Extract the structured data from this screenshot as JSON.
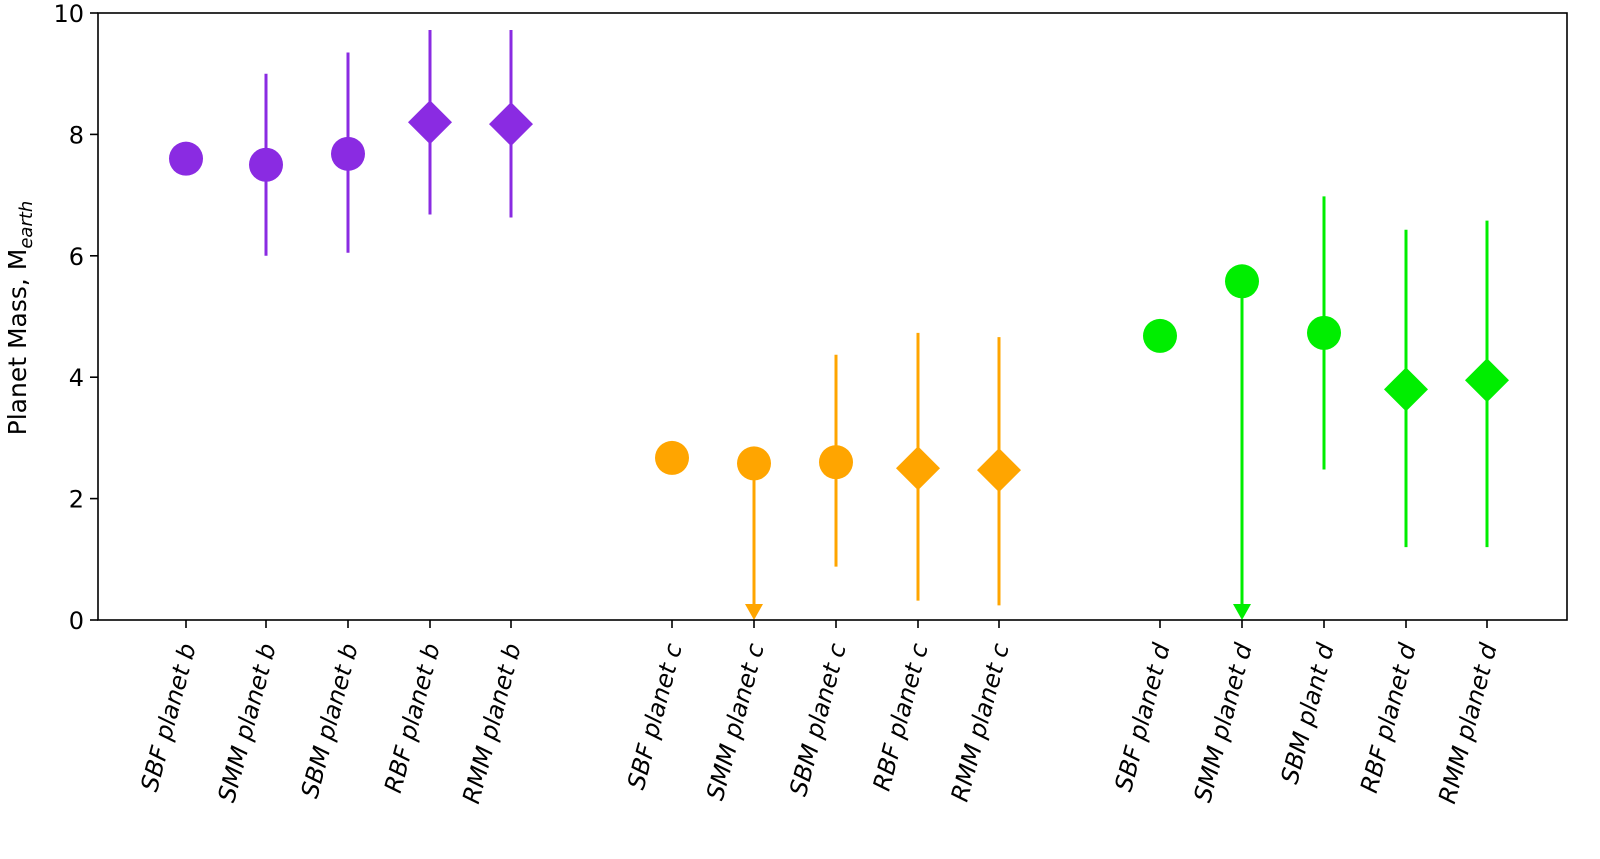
{
  "chart_data": {
    "type": "scatter",
    "ylabel": "Planet Mass, M",
    "ylabel_subscript": "earth",
    "ylim": [
      0,
      10
    ],
    "yticks": [
      "0",
      "2",
      "4",
      "6",
      "8",
      "10"
    ],
    "grid": false,
    "colors": {
      "planet_b": "#8a2be2",
      "planet_c": "#ffa500",
      "planet_d": "#00ee00"
    },
    "points": [
      {
        "label": "SBF planet b",
        "group": "planet_b",
        "marker": "circle",
        "y": 7.6,
        "err_low": null,
        "err_high": null,
        "upper_limit": false
      },
      {
        "label": "SMM planet b",
        "group": "planet_b",
        "marker": "circle",
        "y": 7.5,
        "err_low": 6.0,
        "err_high": 9.0,
        "upper_limit": false
      },
      {
        "label": "SBM planet b",
        "group": "planet_b",
        "marker": "circle",
        "y": 7.68,
        "err_low": 6.05,
        "err_high": 9.35,
        "upper_limit": false
      },
      {
        "label": "RBF planet b",
        "group": "planet_b",
        "marker": "diamond",
        "y": 8.2,
        "err_low": 6.68,
        "err_high": 9.72,
        "upper_limit": false
      },
      {
        "label": "RMM planet b",
        "group": "planet_b",
        "marker": "diamond",
        "y": 8.17,
        "err_low": 6.63,
        "err_high": 9.72,
        "upper_limit": false
      },
      {
        "label": "SBF planet c",
        "group": "planet_c",
        "marker": "circle",
        "y": 2.67,
        "err_low": null,
        "err_high": null,
        "upper_limit": false
      },
      {
        "label": "SMM planet c",
        "group": "planet_c",
        "marker": "circle",
        "y": 2.58,
        "err_low": 0.0,
        "err_high": 2.58,
        "upper_limit": true
      },
      {
        "label": "SBM planet c",
        "group": "planet_c",
        "marker": "circle",
        "y": 2.6,
        "err_low": 0.88,
        "err_high": 4.37,
        "upper_limit": false
      },
      {
        "label": "RBF planet c",
        "group": "planet_c",
        "marker": "diamond",
        "y": 2.5,
        "err_low": 0.32,
        "err_high": 4.73,
        "upper_limit": false
      },
      {
        "label": "RMM planet c",
        "group": "planet_c",
        "marker": "diamond",
        "y": 2.47,
        "err_low": 0.24,
        "err_high": 4.66,
        "upper_limit": false
      },
      {
        "label": "SBF planet d",
        "group": "planet_d",
        "marker": "circle",
        "y": 4.68,
        "err_low": null,
        "err_high": null,
        "upper_limit": false
      },
      {
        "label": "SMM planet d",
        "group": "planet_d",
        "marker": "circle",
        "y": 5.58,
        "err_low": 0.0,
        "err_high": 5.58,
        "upper_limit": true
      },
      {
        "label": "SBM plant d",
        "group": "planet_d",
        "marker": "circle",
        "y": 4.73,
        "err_low": 2.48,
        "err_high": 6.98,
        "upper_limit": false
      },
      {
        "label": "RBF planet d",
        "group": "planet_d",
        "marker": "diamond",
        "y": 3.8,
        "err_low": 1.2,
        "err_high": 6.43,
        "upper_limit": false
      },
      {
        "label": "RMM planet d",
        "group": "planet_d",
        "marker": "diamond",
        "y": 3.95,
        "err_low": 1.2,
        "err_high": 6.58,
        "upper_limit": false
      }
    ]
  }
}
